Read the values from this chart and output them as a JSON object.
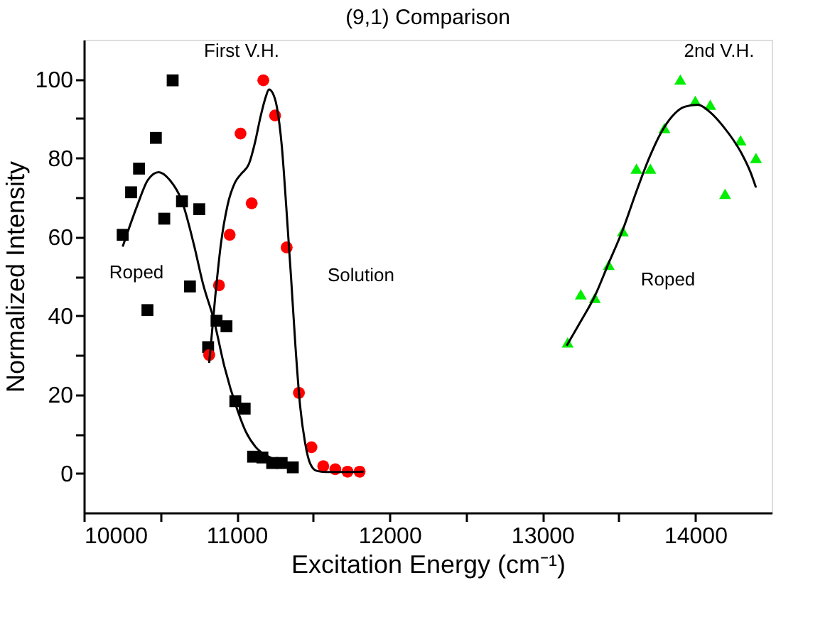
{
  "chart_data": {
    "type": "scatter",
    "title": "(9,1) Comparison",
    "xlabel": "Excitation Energy (cm⁻¹)",
    "ylabel": "Normalized Intensity",
    "xlim": [
      10000,
      14500
    ],
    "ylim": [
      -10,
      110
    ],
    "xticks": [
      10000,
      {
        "value": 10500,
        "label": null
      },
      11000,
      {
        "value": 11500,
        "label": null
      },
      12000,
      {
        "value": 12500,
        "label": null
      },
      13000,
      {
        "value": 13500,
        "label": null
      },
      14000
    ],
    "yticks": [
      0,
      {
        "value": 10,
        "label": null
      },
      20,
      {
        "value": 30,
        "label": null
      },
      40,
      {
        "value": 50,
        "label": null
      },
      60,
      {
        "value": 70,
        "label": null
      },
      80,
      {
        "value": 90,
        "label": null
      },
      100
    ],
    "grid": false,
    "series": [
      {
        "marker": "square",
        "color": "#000000",
        "x": [
          10254,
          10309,
          10361,
          10416,
          10471,
          10526,
          10581,
          10642,
          10694,
          10755,
          10813,
          10868,
          10933,
          10991,
          11052,
          11107,
          11168,
          11232,
          11294,
          11367
        ],
        "values": [
          60.5,
          71.3,
          77.3,
          41.4,
          85.1,
          64.6,
          99.7,
          69,
          47.4,
          67,
          32,
          38.7,
          37.3,
          18.3,
          16.4,
          4.2,
          4,
          2.6,
          2.6,
          1.5
        ]
      },
      {
        "marker": "circle",
        "color": "#ff0000",
        "x": [
          10820,
          10884,
          10954,
          11025,
          11098,
          11174,
          11251,
          11327,
          11407,
          11489,
          11566,
          11645,
          11725,
          11804
        ],
        "values": [
          30,
          47.7,
          60.5,
          86.2,
          68.5,
          99.7,
          90.8,
          57.3,
          20.4,
          6.6,
          1.8,
          1,
          0.4,
          0.4
        ]
      },
      {
        "marker": "triangle",
        "color": "#00ee00",
        "x": [
          13165,
          13251,
          13343,
          13434,
          13526,
          13615,
          13706,
          13798,
          13902,
          14000,
          14098,
          14195,
          14296,
          14397
        ],
        "values": [
          33.2,
          45.4,
          44.5,
          52.9,
          61.4,
          77.3,
          77.3,
          87.6,
          99.9,
          94.5,
          93.5,
          70.9,
          84.5,
          80
        ]
      },
      {
        "type": "line",
        "marker": "none",
        "color": "#000000",
        "x": [
          10254,
          10350,
          10420,
          10490,
          10560,
          10642,
          10720,
          10780,
          10850,
          10920,
          11003,
          11060,
          11125,
          11220,
          11290,
          11339,
          11370
        ],
        "values": [
          57.5,
          68,
          74.5,
          76.4,
          74.5,
          69,
          58,
          48,
          39,
          27,
          16.2,
          10.5,
          6.6,
          4,
          3,
          2.4,
          2
        ]
      },
      {
        "type": "line",
        "marker": "none",
        "color": "#000000",
        "x": [
          10820,
          10860,
          10896,
          10940,
          10988,
          11030,
          11080,
          11120,
          11156,
          11190,
          11211,
          11235,
          11263,
          11295,
          11324,
          11355,
          11385,
          11415,
          11447,
          11480,
          11523,
          11580,
          11645,
          11730,
          11830
        ],
        "values": [
          28,
          45,
          58,
          68,
          73.7,
          76,
          78.5,
          84,
          90.5,
          95.5,
          97.4,
          96.5,
          92.9,
          83,
          67.7,
          50,
          31.8,
          17,
          7.8,
          2.5,
          0.6,
          0.3,
          0.3,
          0.3,
          0.4
        ]
      },
      {
        "type": "line",
        "marker": "none",
        "color": "#000000",
        "x": [
          13159,
          13250,
          13343,
          13430,
          13526,
          13610,
          13695,
          13770,
          13847,
          13930,
          14015,
          14100,
          14183,
          14250,
          14305,
          14360,
          14397
        ],
        "values": [
          32.4,
          38.5,
          45,
          53,
          61.8,
          71,
          79.7,
          86,
          90.5,
          93,
          93.5,
          91.5,
          88,
          84.5,
          81,
          76.5,
          72.5
        ]
      }
    ],
    "annotations": [
      "First V.H.",
      "Roped",
      "Solution",
      "2nd V.H.",
      "Roped"
    ]
  }
}
